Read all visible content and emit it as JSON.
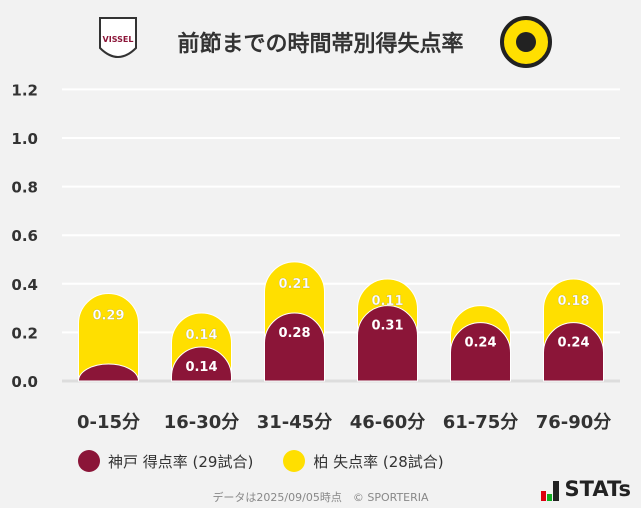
{
  "title": "前節までの時間帯別得失点率",
  "logos": {
    "left": "VISSEL",
    "right": "KASHIWA REYSOL"
  },
  "colors": {
    "kobe": "#8b1538",
    "kashiwa": "#ffdf00",
    "grid": "#ffffff"
  },
  "chart_data": {
    "type": "bar",
    "stacked": true,
    "categories": [
      "0-15分",
      "16-30分",
      "31-45分",
      "46-60分",
      "61-75分",
      "76-90分"
    ],
    "series": [
      {
        "name": "神戸 得点率 (29試合)",
        "values": [
          0.07,
          0.14,
          0.28,
          0.31,
          0.24,
          0.24
        ],
        "labels": [
          "",
          "0.14",
          "0.28",
          "0.31",
          "0.24",
          "0.24"
        ]
      },
      {
        "name": "柏 失点率 (28試合)",
        "values": [
          0.29,
          0.14,
          0.21,
          0.11,
          0.07,
          0.18
        ],
        "labels": [
          "0.29",
          "0.14",
          "0.21",
          "0.11",
          "",
          "0.18"
        ]
      }
    ],
    "ylim": [
      0,
      1.2
    ],
    "yticks": [
      "0.0",
      "0.2",
      "0.4",
      "0.6",
      "0.8",
      "1.0",
      "1.2"
    ],
    "grid": true,
    "legend": "bottom"
  },
  "footer": "データは2025/09/05時点　© SPORTERIA",
  "brand": "STATs"
}
